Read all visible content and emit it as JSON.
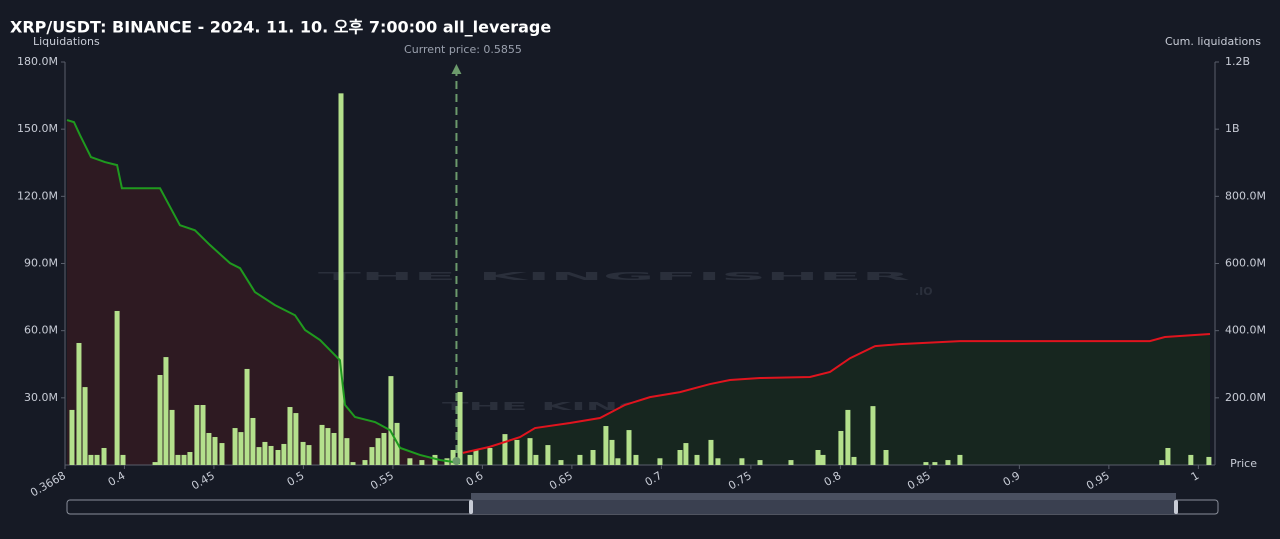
{
  "chart_data": {
    "type": "bar",
    "title": "XRP/USDT: BINANCE - 2024. 11. 10. 오후 7:00:00 all_leverage",
    "y_label": "Liquidations",
    "y2_label": "Cum. liquidations",
    "x_label": "Price",
    "annotation": "Current price: 0.5855",
    "current_price": 0.5855,
    "watermark_text": "THE KINGFISHER",
    "watermark_suffix": ".IO",
    "xlim": [
      0.3668,
      1.0093
    ],
    "xticks": [
      0.3668,
      0.4,
      0.45,
      0.5,
      0.55,
      0.6,
      0.65,
      0.7,
      0.75,
      0.8,
      0.85,
      0.9,
      0.95,
      1
    ],
    "ylim": [
      0,
      180000000
    ],
    "yticks": [
      {
        "value": 30000000,
        "label": "30.0M"
      },
      {
        "value": 60000000,
        "label": "60.0M"
      },
      {
        "value": 90000000,
        "label": "90.0M"
      },
      {
        "value": 120000000,
        "label": "120.0M"
      },
      {
        "value": 150000000,
        "label": "150.0M"
      },
      {
        "value": 180000000,
        "label": "180.0M"
      }
    ],
    "y2lim": [
      0,
      1200000000
    ],
    "y2ticks": [
      {
        "value": 200000000,
        "label": "200.0M"
      },
      {
        "value": 400000000,
        "label": "400.0M"
      },
      {
        "value": 600000000,
        "label": "600.0M"
      },
      {
        "value": 800000000,
        "label": "800.0M"
      },
      {
        "value": 1000000000,
        "label": "1B"
      },
      {
        "value": 1200000000,
        "label": "1.2B"
      }
    ],
    "grid": false,
    "series": [
      {
        "type": "bar",
        "color": "#b4e08c",
        "x": [
          0.3707,
          0.3746,
          0.378,
          0.3813,
          0.3847,
          0.3886,
          0.3959,
          0.3992,
          0.4171,
          0.4199,
          0.4232,
          0.4266,
          0.4299,
          0.4333,
          0.4366,
          0.4405,
          0.4439,
          0.4472,
          0.4506,
          0.4545,
          0.4618,
          0.4651,
          0.4685,
          0.4718,
          0.4752,
          0.4785,
          0.4819,
          0.4858,
          0.4891,
          0.4925,
          0.4958,
          0.4998,
          0.5031,
          0.5104,
          0.5137,
          0.5171,
          0.521,
          0.5243,
          0.5277,
          0.5344,
          0.5383,
          0.5417,
          0.545,
          0.5489,
          0.5523,
          0.5595,
          0.5662,
          0.5735,
          0.5802,
          0.5836,
          0.5875,
          0.5931,
          0.5964,
          0.6042,
          0.6126,
          0.6193,
          0.6266,
          0.6299,
          0.6366,
          0.6439,
          0.6545,
          0.6618,
          0.669,
          0.6724,
          0.6757,
          0.6819,
          0.6858,
          0.6992,
          0.7104,
          0.7137,
          0.7199,
          0.7277,
          0.7316,
          0.745,
          0.7551,
          0.7724,
          0.7875,
          0.7903,
          0.8003,
          0.8042,
          0.8076,
          0.8182,
          0.8255,
          0.8478,
          0.8528,
          0.8601,
          0.8668,
          0.9796,
          0.983,
          0.9958,
          1.0059
        ],
        "values": [
          24600000,
          54500000,
          34800000,
          4500000,
          4500000,
          7600000,
          68800000,
          4500000,
          1300000,
          40200000,
          48200000,
          24600000,
          4500000,
          4500000,
          5800000,
          26800000,
          26800000,
          14300000,
          12500000,
          9800000,
          16500000,
          14700000,
          42900000,
          21000000,
          8000000,
          10300000,
          8500000,
          6700000,
          9400000,
          25900000,
          23200000,
          10300000,
          8900000,
          17900000,
          16500000,
          14300000,
          166000000,
          12000000,
          1300000,
          2200000,
          8000000,
          12000000,
          14300000,
          39700000,
          18800000,
          3000000,
          2200000,
          4500000,
          3000000,
          6700000,
          32600000,
          4500000,
          6700000,
          7600000,
          13800000,
          11200000,
          12000000,
          4500000,
          8900000,
          2200000,
          4500000,
          6700000,
          17400000,
          11200000,
          3000000,
          15600000,
          4500000,
          3000000,
          6700000,
          9800000,
          4500000,
          11200000,
          3000000,
          3000000,
          2200000,
          2200000,
          6700000,
          4500000,
          15200000,
          24600000,
          3600000,
          26300000,
          6700000,
          1300000,
          1300000,
          2200000,
          4500000,
          2200000,
          7600000,
          4500000,
          3600000
        ]
      },
      {
        "type": "line",
        "axis": "y2",
        "color": "#1f9a1f",
        "fill": "#2e1a22",
        "x": [
          0.3679,
          0.3718,
          0.3752,
          0.3813,
          0.3891,
          0.3959,
          0.3986,
          0.4199,
          0.431,
          0.4394,
          0.4478,
          0.459,
          0.4646,
          0.4729,
          0.4841,
          0.4953,
          0.5009,
          0.5093,
          0.5204,
          0.5232,
          0.5288,
          0.54,
          0.5484,
          0.554,
          0.5651,
          0.5763,
          0.5875
        ],
        "values": [
          1027000000,
          1021000000,
          982000000,
          917000000,
          902000000,
          893000000,
          824000000,
          824000000,
          714000000,
          699000000,
          655000000,
          601000000,
          586000000,
          515000000,
          476000000,
          446000000,
          402000000,
          372000000,
          312000000,
          179000000,
          143000000,
          128000000,
          104000000,
          51000000,
          30000000,
          15000000,
          6000000
        ]
      },
      {
        "type": "line",
        "axis": "y2",
        "color": "#e0141e",
        "fill": "#17261f",
        "x": [
          0.5891,
          0.604,
          0.621,
          0.6294,
          0.6489,
          0.6657,
          0.6797,
          0.6936,
          0.7104,
          0.7272,
          0.7383,
          0.7551,
          0.783,
          0.7942,
          0.8054,
          0.8194,
          0.8333,
          0.8668,
          0.9729,
          0.9813,
          1.0065
        ],
        "values": [
          36000000,
          54000000,
          83000000,
          110000000,
          125000000,
          140000000,
          179000000,
          202000000,
          217000000,
          241000000,
          253000000,
          259000000,
          262000000,
          277000000,
          318000000,
          354000000,
          360000000,
          369000000,
          369000000,
          381000000,
          390000000
        ]
      }
    ]
  }
}
